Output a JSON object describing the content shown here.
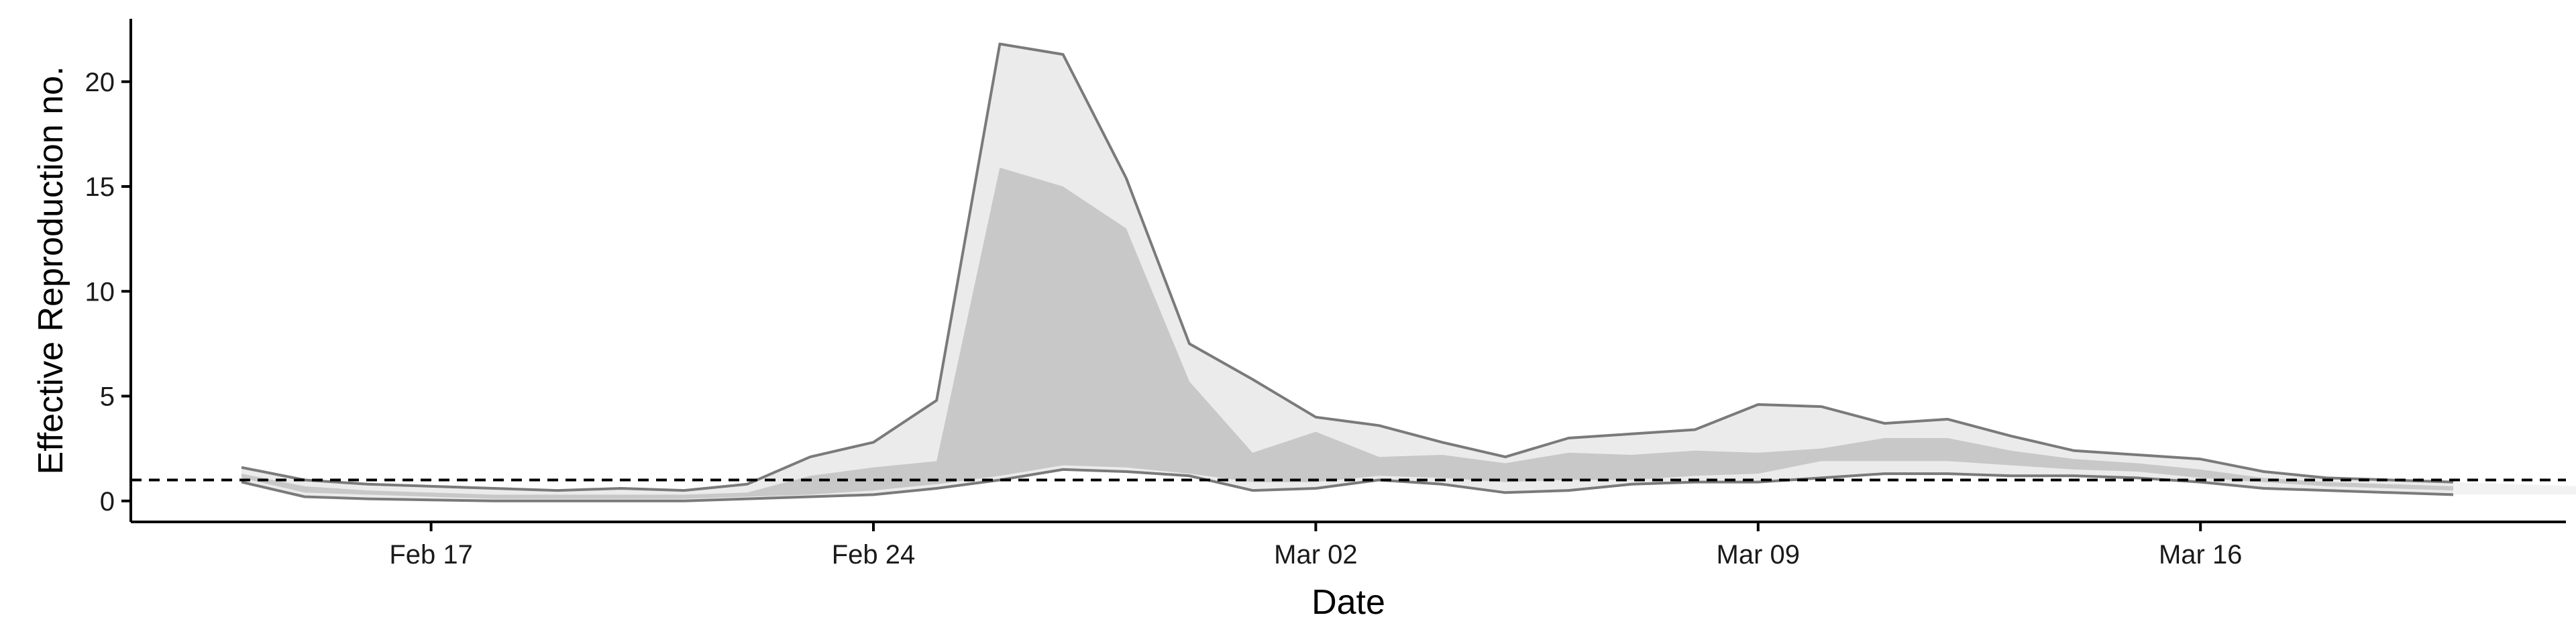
{
  "chart_data": {
    "type": "area",
    "title": "",
    "xlabel": "Date",
    "ylabel": "Effective Reproduction no.",
    "x_start": "2020-02-14",
    "x": [
      "Feb 14",
      "Feb 15",
      "Feb 16",
      "Feb 17",
      "Feb 18",
      "Feb 19",
      "Feb 20",
      "Feb 21",
      "Feb 22",
      "Feb 23",
      "Feb 24",
      "Feb 25",
      "Feb 26",
      "Feb 27",
      "Feb 28",
      "Feb 29",
      "Mar 01",
      "Mar 02",
      "Mar 03",
      "Mar 04",
      "Mar 05",
      "Mar 06",
      "Mar 07",
      "Mar 08",
      "Mar 09",
      "Mar 10",
      "Mar 11",
      "Mar 12",
      "Mar 13",
      "Mar 14",
      "Mar 15",
      "Mar 16",
      "Mar 17",
      "Mar 18",
      "Mar 19",
      "Mar 20",
      "Mar 21",
      "Mar 22",
      "Mar 23",
      "Mar 24",
      "Mar 25",
      "Mar 26",
      "Mar 27"
    ],
    "xticks": [
      {
        "label": "Feb 17",
        "index": 3
      },
      {
        "label": "Feb 24",
        "index": 10
      },
      {
        "label": "Mar 02",
        "index": 17
      },
      {
        "label": "Mar 09",
        "index": 24
      },
      {
        "label": "Mar 16",
        "index": 31
      }
    ],
    "yticks": [
      0,
      5,
      10,
      15,
      20
    ],
    "ylim": [
      -1.0,
      23.0
    ],
    "reference_line": 1,
    "series": [
      {
        "kind": "outer-band",
        "color": "#ebebeb",
        "line_color": "#7a7a7a",
        "upper": [
          1.6,
          1.0,
          0.8,
          0.7,
          0.6,
          0.5,
          0.6,
          0.5,
          0.8,
          2.1,
          2.8,
          4.8,
          21.8,
          21.3,
          15.4,
          7.5,
          5.8,
          4.0,
          3.6,
          2.8,
          2.1,
          3.0,
          3.2,
          3.4,
          4.6,
          4.5,
          3.7,
          3.9,
          3.1,
          2.4,
          2.2,
          2.0,
          1.4,
          1.1,
          1.0,
          0.9,
          null,
          null,
          null,
          null,
          null,
          null,
          null
        ],
        "lower": [
          0.9,
          0.2,
          0.1,
          0.05,
          0.0,
          0.0,
          0.0,
          0.0,
          0.1,
          0.2,
          0.3,
          0.6,
          1.0,
          1.5,
          1.4,
          1.2,
          0.5,
          0.6,
          1.0,
          0.8,
          0.4,
          0.5,
          0.8,
          0.9,
          0.9,
          1.1,
          1.3,
          1.3,
          1.2,
          1.2,
          1.1,
          0.9,
          0.6,
          0.5,
          0.4,
          0.3,
          null,
          null,
          null,
          null,
          null,
          null,
          null
        ]
      },
      {
        "kind": "inner-band",
        "color": "#c8c8c8",
        "upper": [
          1.3,
          0.7,
          0.5,
          0.4,
          0.3,
          0.3,
          0.3,
          0.3,
          0.4,
          1.2,
          1.6,
          1.9,
          15.9,
          15.0,
          13.0,
          5.7,
          2.3,
          3.3,
          2.1,
          2.2,
          1.8,
          2.3,
          2.2,
          2.4,
          2.3,
          2.5,
          3.0,
          3.0,
          2.4,
          2.0,
          1.8,
          1.5,
          1.1,
          0.9,
          0.8,
          0.7,
          null,
          null,
          null,
          null,
          null,
          null,
          null
        ],
        "lower": [
          1.1,
          0.4,
          0.3,
          0.2,
          0.1,
          0.1,
          0.1,
          0.1,
          0.2,
          0.3,
          0.5,
          0.8,
          1.2,
          1.7,
          1.6,
          1.3,
          0.9,
          0.9,
          1.2,
          1.1,
          0.9,
          1.0,
          1.0,
          1.2,
          1.3,
          1.9,
          1.9,
          1.9,
          1.7,
          1.5,
          1.4,
          1.1,
          0.9,
          0.7,
          0.6,
          0.5,
          null,
          null,
          null,
          null,
          null,
          null,
          null
        ]
      },
      {
        "kind": "forecast-band",
        "color": "#f2f2f2",
        "upper": [
          null,
          null,
          null,
          null,
          null,
          null,
          null,
          null,
          null,
          null,
          null,
          null,
          null,
          null,
          null,
          null,
          null,
          null,
          null,
          null,
          null,
          null,
          null,
          null,
          null,
          null,
          null,
          null,
          null,
          null,
          null,
          null,
          null,
          null,
          null,
          0.9,
          0.8,
          0.7,
          0.6,
          0.5,
          0.45,
          0.4,
          0.35
        ],
        "lower": [
          null,
          null,
          null,
          null,
          null,
          null,
          null,
          null,
          null,
          null,
          null,
          null,
          null,
          null,
          null,
          null,
          null,
          null,
          null,
          null,
          null,
          null,
          null,
          null,
          null,
          null,
          null,
          null,
          null,
          null,
          null,
          null,
          null,
          null,
          null,
          0.3,
          0.3,
          0.3,
          0.25,
          0.25,
          0.2,
          0.2,
          0.2
        ]
      }
    ],
    "grid": false,
    "legend": "none"
  }
}
